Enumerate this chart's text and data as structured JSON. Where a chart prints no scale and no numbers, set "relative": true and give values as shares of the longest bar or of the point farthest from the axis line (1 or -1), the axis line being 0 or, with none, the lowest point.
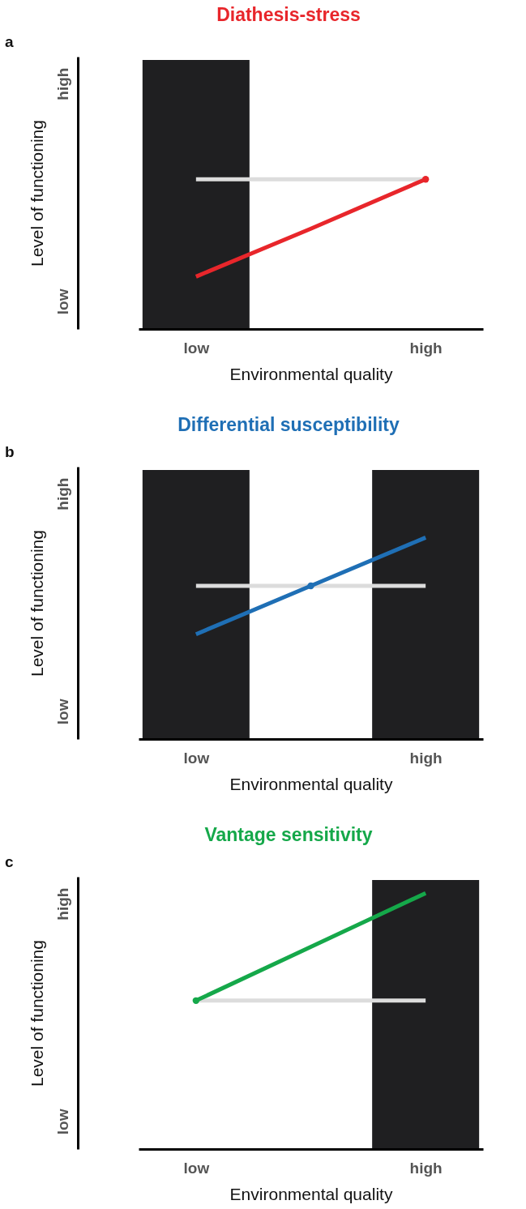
{
  "chart_data": [
    {
      "type": "line",
      "relative": true,
      "title": "Diathesis-stress",
      "annotations": [
        "a",
        "low",
        "high"
      ],
      "xlabel": "Environmental quality",
      "ylabel": "Level of functioning",
      "categories": [
        "low",
        null,
        "high"
      ],
      "grid": false,
      "bands": [
        {
          "axis": "x",
          "from": "low",
          "to": "low",
          "color": "#1f1f21"
        }
      ],
      "series": [
        {
          "color": "#dcdcdc",
          "values": [
            1,
            1,
            1
          ]
        },
        {
          "color": "#e8262b",
          "values": [
            0.35,
            0.67,
            1
          ]
        },
        {
          "type": "scatter",
          "color": "#e8262b",
          "values": [
            null,
            null,
            1
          ]
        }
      ]
    },
    {
      "type": "line",
      "relative": true,
      "title": "Differential susceptibility",
      "annotations": [
        "b",
        "low",
        "high"
      ],
      "xlabel": "Environmental quality",
      "ylabel": "Level of functioning",
      "categories": [
        "low",
        null,
        "high"
      ],
      "grid": false,
      "bands": [
        {
          "axis": "x",
          "from": "low",
          "to": "low",
          "color": "#1f1f21"
        },
        {
          "axis": "x",
          "from": "high",
          "to": "high",
          "color": "#1f1f21"
        }
      ],
      "series": [
        {
          "color": "#dcdcdc",
          "values": [
            0.76,
            0.76,
            0.76
          ]
        },
        {
          "color": "#1f6fb5",
          "values": [
            0.52,
            0.76,
            1
          ]
        },
        {
          "type": "scatter",
          "color": "#1f6fb5",
          "values": [
            null,
            0.76,
            null
          ]
        }
      ]
    },
    {
      "type": "line",
      "relative": true,
      "title": "Vantage sensitivity",
      "annotations": [
        "c",
        "low",
        "high"
      ],
      "xlabel": "Environmental quality",
      "ylabel": "Level of functioning",
      "categories": [
        "low",
        null,
        "high"
      ],
      "grid": false,
      "bands": [
        {
          "axis": "x",
          "from": "high",
          "to": "high",
          "color": "#1f1f21"
        }
      ],
      "series": [
        {
          "color": "#dcdcdc",
          "values": [
            0.58,
            0.58,
            0.58
          ]
        },
        {
          "color": "#15a84a",
          "values": [
            0.58,
            0.79,
            1
          ]
        },
        {
          "type": "scatter",
          "color": "#15a84a",
          "values": [
            0.58,
            null,
            null
          ]
        }
      ]
    }
  ]
}
